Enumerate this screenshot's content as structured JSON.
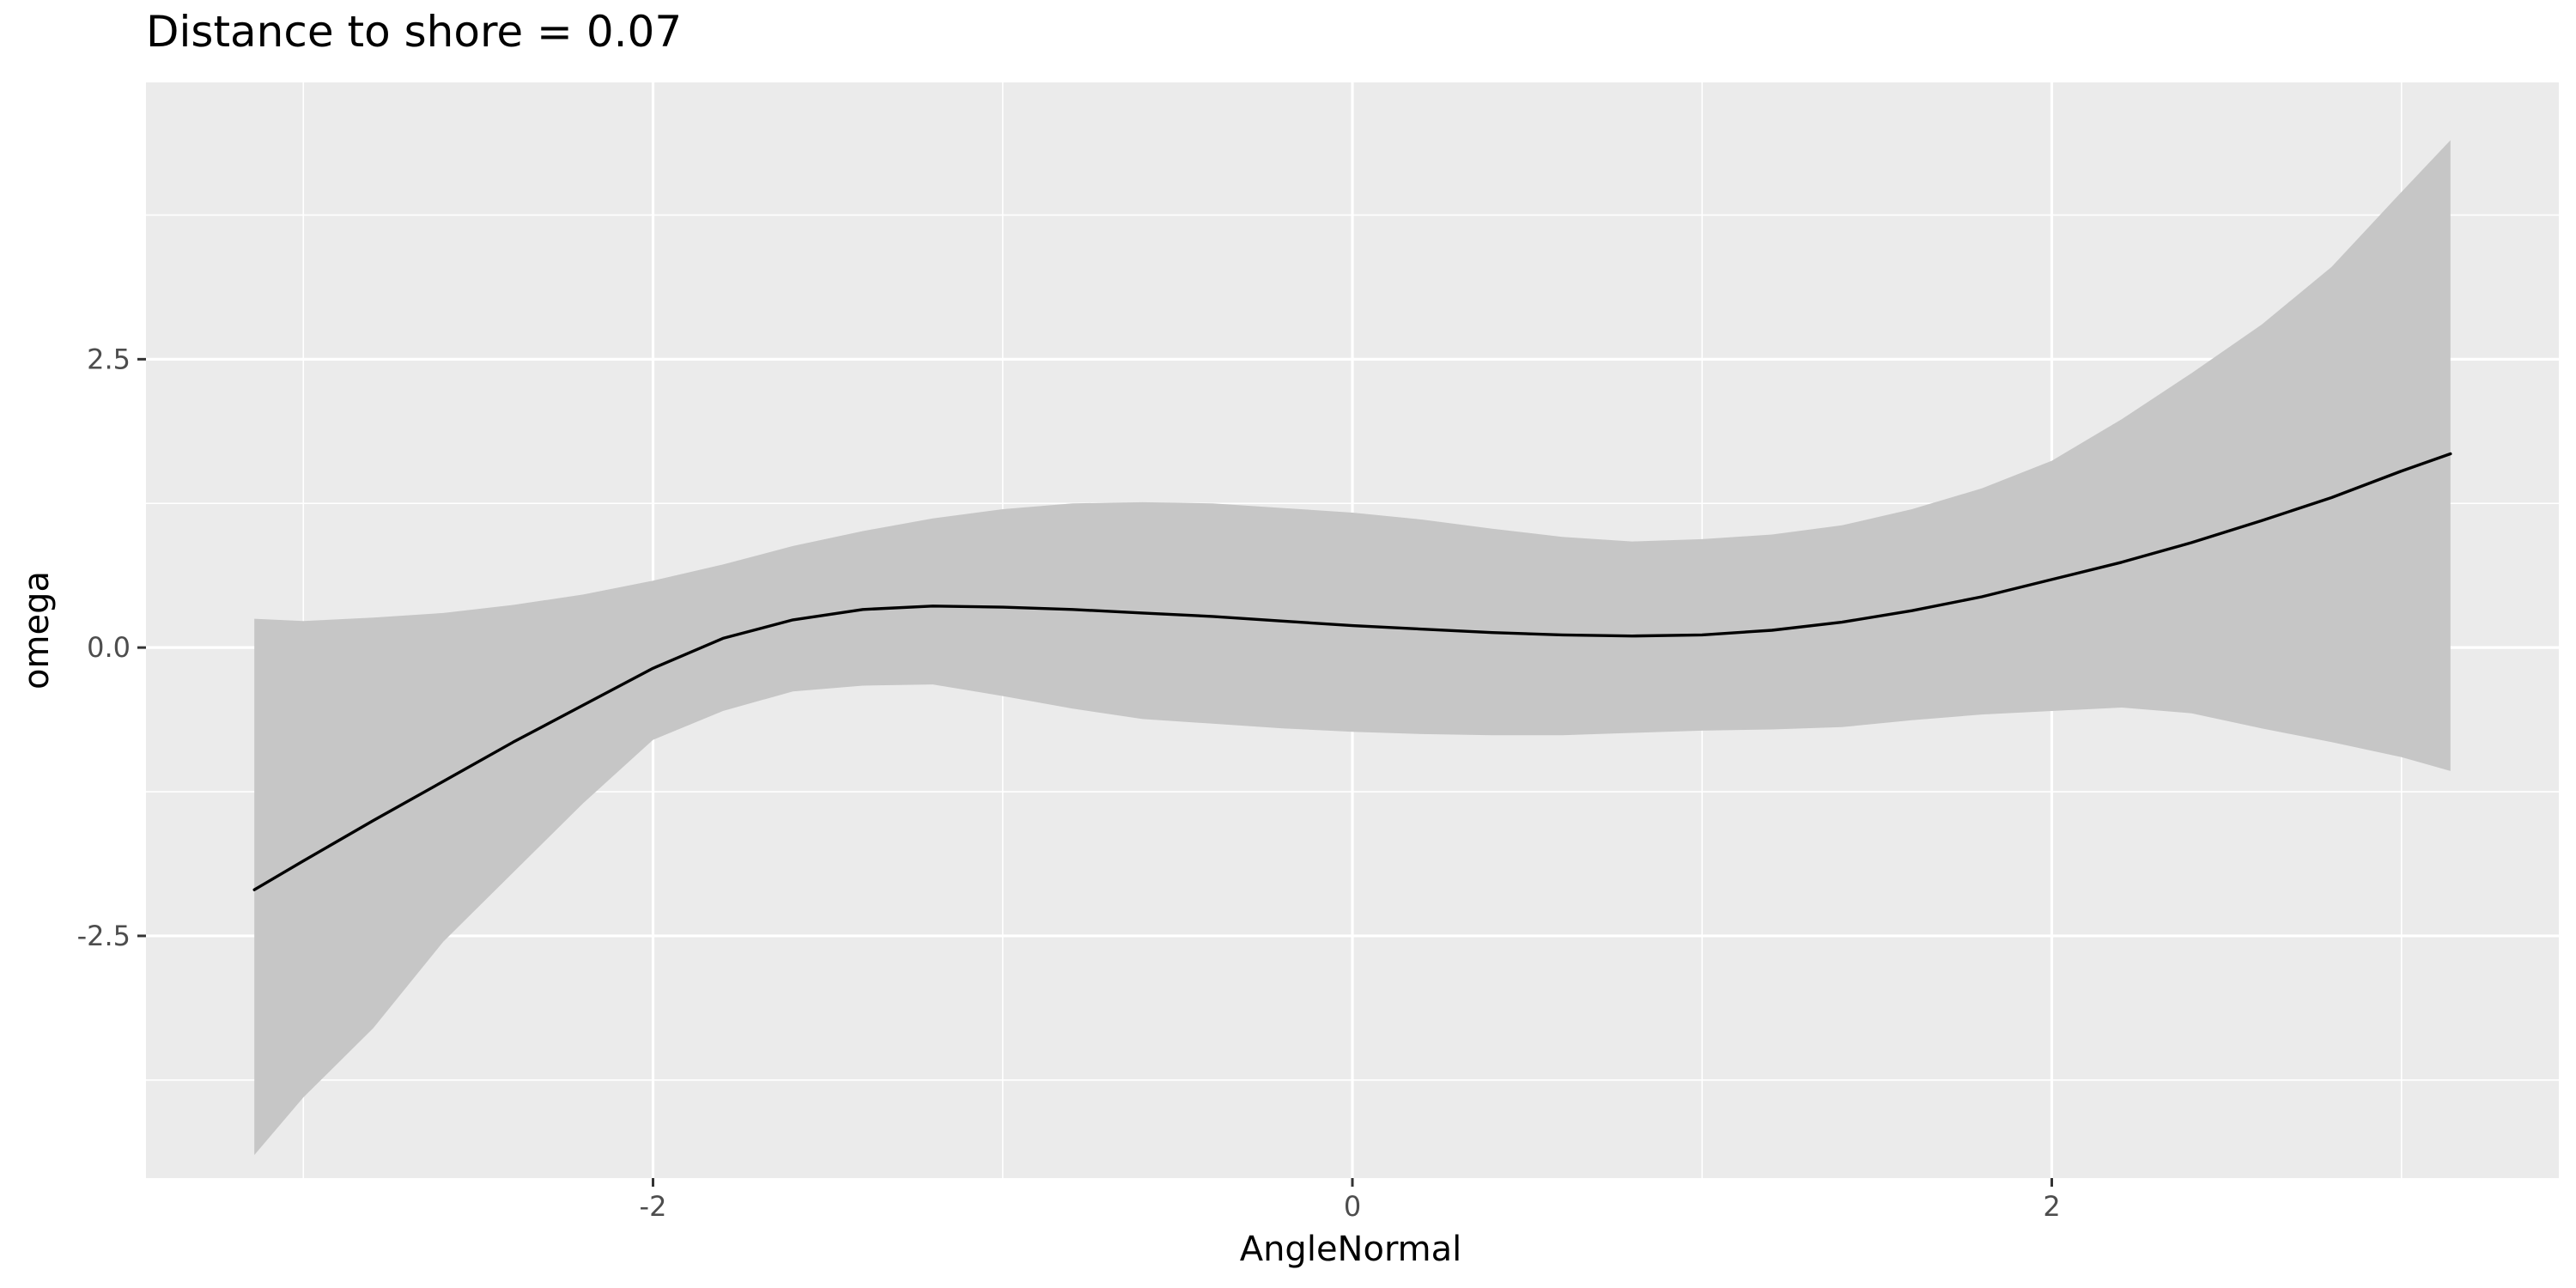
{
  "chart_data": {
    "type": "line",
    "title": "Distance to shore = 0.07",
    "xlabel": "AngleNormal",
    "ylabel": "omega",
    "xlim": [
      -3.45,
      3.45
    ],
    "ylim": [
      -4.6,
      4.9
    ],
    "x_ticks": [
      -2,
      0,
      2
    ],
    "x_tick_labels": [
      "-2",
      "0",
      "2"
    ],
    "y_ticks": [
      -2.5,
      0.0,
      2.5
    ],
    "y_tick_labels": [
      "-2.5",
      "0.0",
      "2.5"
    ],
    "grid": true,
    "legend": "none",
    "colors": {
      "panel": "#ebebeb",
      "grid": "#ffffff",
      "band": "#c6c6c6",
      "line": "#000000"
    },
    "series": [
      {
        "x": [
          -3.14,
          -3.0,
          -2.8,
          -2.6,
          -2.4,
          -2.2,
          -2.0,
          -1.8,
          -1.6,
          -1.4,
          -1.2,
          -1.0,
          -0.8,
          -0.6,
          -0.4,
          -0.2,
          0.0,
          0.2,
          0.4,
          0.6,
          0.8,
          1.0,
          1.2,
          1.4,
          1.6,
          1.8,
          2.0,
          2.2,
          2.4,
          2.6,
          2.8,
          3.0,
          3.14
        ],
        "y": [
          -2.1,
          -1.85,
          -1.5,
          -1.16,
          -0.82,
          -0.5,
          -0.18,
          0.08,
          0.24,
          0.33,
          0.36,
          0.35,
          0.33,
          0.3,
          0.27,
          0.23,
          0.19,
          0.16,
          0.13,
          0.11,
          0.1,
          0.11,
          0.15,
          0.22,
          0.32,
          0.44,
          0.59,
          0.74,
          0.91,
          1.1,
          1.3,
          1.53,
          1.68
        ],
        "lower": [
          -4.4,
          -3.9,
          -3.3,
          -2.55,
          -1.95,
          -1.35,
          -0.8,
          -0.55,
          -0.38,
          -0.33,
          -0.32,
          -0.42,
          -0.53,
          -0.62,
          -0.66,
          -0.7,
          -0.73,
          -0.75,
          -0.76,
          -0.76,
          -0.74,
          -0.72,
          -0.71,
          -0.69,
          -0.63,
          -0.58,
          -0.55,
          -0.52,
          -0.57,
          -0.7,
          -0.82,
          -0.95,
          -1.07
        ],
        "upper": [
          0.25,
          0.23,
          0.26,
          0.3,
          0.37,
          0.46,
          0.58,
          0.72,
          0.88,
          1.01,
          1.12,
          1.2,
          1.25,
          1.26,
          1.25,
          1.21,
          1.17,
          1.11,
          1.03,
          0.96,
          0.92,
          0.94,
          0.98,
          1.06,
          1.2,
          1.38,
          1.62,
          1.98,
          2.38,
          2.8,
          3.3,
          3.95,
          4.4
        ]
      }
    ]
  }
}
